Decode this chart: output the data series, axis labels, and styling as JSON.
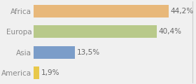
{
  "categories": [
    "America",
    "Asia",
    "Europa",
    "Africa"
  ],
  "values": [
    1.9,
    13.5,
    40.4,
    44.2
  ],
  "labels": [
    "1,9%",
    "13,5%",
    "40,4%",
    "44,2%"
  ],
  "bar_colors": [
    "#e8c84a",
    "#7b9dc9",
    "#b8c98a",
    "#e8b87a"
  ],
  "background_color": "#f0f0f0",
  "xlim": [
    0,
    52
  ],
  "bar_height": 0.62,
  "label_fontsize": 7.5,
  "tick_fontsize": 7.5,
  "tick_color": "#888888",
  "label_color": "#666666"
}
